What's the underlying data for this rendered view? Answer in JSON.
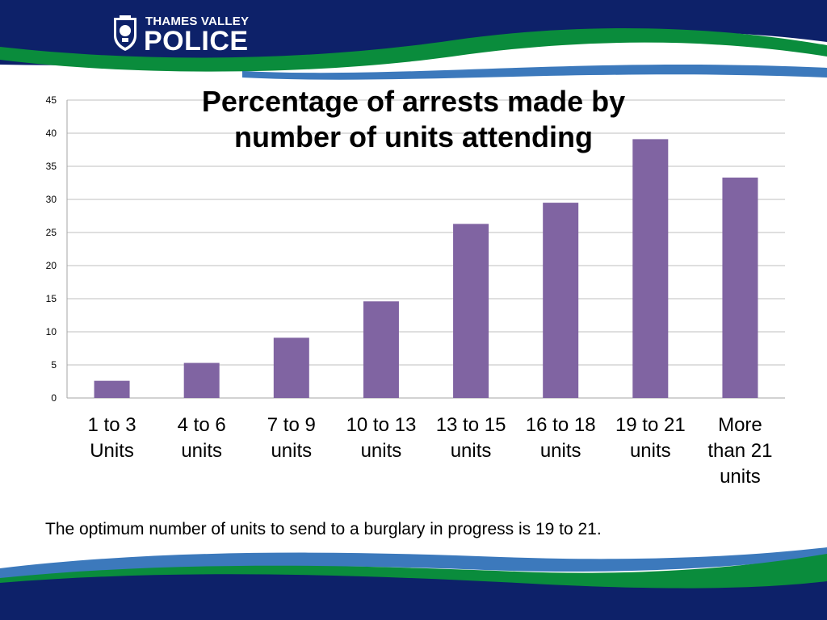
{
  "brand": {
    "org_line1": "THAMES VALLEY",
    "org_line2": "POLICE",
    "crest": "police-crest-icon"
  },
  "colors": {
    "navy": "#0d2169",
    "green": "#0a8c3c",
    "bar": "#8064a2",
    "grid": "#bfbfbf"
  },
  "chart_data": {
    "type": "bar",
    "title": "Percentage of arrests made by number of units attending",
    "title_lines": [
      "Percentage of arrests made by",
      "number of units attending"
    ],
    "categories": [
      [
        "1 to 3",
        "Units"
      ],
      [
        "4 to 6",
        "units"
      ],
      [
        "7 to 9",
        "units"
      ],
      [
        "10 to 13",
        "units"
      ],
      [
        "13 to 15",
        "units"
      ],
      [
        "16 to 18",
        "units"
      ],
      [
        "19 to 21",
        "units"
      ],
      [
        "More",
        "than 21",
        "units"
      ]
    ],
    "values": [
      2.6,
      5.3,
      9.1,
      14.6,
      26.3,
      29.5,
      39.1,
      33.3
    ],
    "ylim": [
      0,
      45
    ],
    "yticks": [
      "0",
      "5",
      "10",
      "15",
      "20",
      "25",
      "30",
      "35",
      "40",
      "45"
    ],
    "grid": true,
    "legend": "none",
    "xlabel": "",
    "ylabel": ""
  },
  "caption": "The optimum number of units to send to a burglary in progress is 19 to 21."
}
